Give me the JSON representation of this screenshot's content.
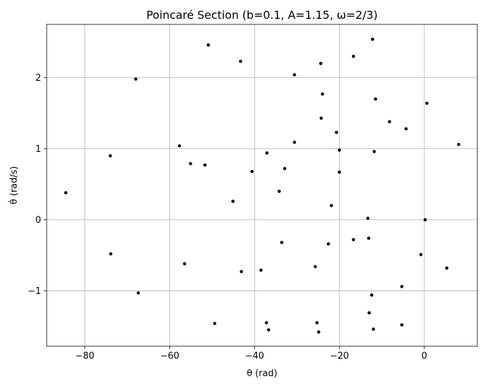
{
  "chart_data": {
    "type": "scatter",
    "title": "Poincaré Section (b=0.1, A=1.15, ω=2/3)",
    "xlabel": "θ (rad)",
    "ylabel": "θ̇ (rad/s)",
    "xlim": [
      -89,
      12.5
    ],
    "ylim": [
      -1.78,
      2.75
    ],
    "xticks": [
      -80,
      -60,
      -40,
      -20,
      0
    ],
    "xtick_labels": [
      "−80",
      "−60",
      "−40",
      "−20",
      "0"
    ],
    "yticks": [
      -1,
      0,
      1,
      2
    ],
    "ytick_labels": [
      "−1",
      "0",
      "1",
      "2"
    ],
    "grid": true,
    "marker_color": "#000000",
    "series": [
      {
        "points": [
          [
            -84.5,
            0.38
          ],
          [
            -74.0,
            0.9
          ],
          [
            -73.9,
            -0.48
          ],
          [
            -68.0,
            1.98
          ],
          [
            -67.4,
            -1.03
          ],
          [
            -57.7,
            1.04
          ],
          [
            -56.5,
            -0.62
          ],
          [
            -55.1,
            0.79
          ],
          [
            -51.7,
            0.77
          ],
          [
            -50.9,
            2.46
          ],
          [
            -49.4,
            -1.46
          ],
          [
            -45.1,
            0.26
          ],
          [
            -43.3,
            2.23
          ],
          [
            -43.1,
            -0.73
          ],
          [
            -40.6,
            0.68
          ],
          [
            -38.5,
            -0.71
          ],
          [
            -37.1,
            0.94
          ],
          [
            -37.2,
            -1.45
          ],
          [
            -36.7,
            -1.55
          ],
          [
            -34.2,
            0.4
          ],
          [
            -33.6,
            -0.32
          ],
          [
            -32.9,
            0.72
          ],
          [
            -30.6,
            2.04
          ],
          [
            -30.6,
            1.09
          ],
          [
            -25.7,
            -0.66
          ],
          [
            -25.3,
            -1.45
          ],
          [
            -24.9,
            -1.58
          ],
          [
            -24.4,
            2.2
          ],
          [
            -24.3,
            1.43
          ],
          [
            -24.0,
            1.77
          ],
          [
            -22.6,
            -0.34
          ],
          [
            -21.9,
            0.2
          ],
          [
            -20.7,
            1.23
          ],
          [
            -20.0,
            0.98
          ],
          [
            -20.0,
            0.67
          ],
          [
            -16.7,
            2.3
          ],
          [
            -16.7,
            -0.28
          ],
          [
            -13.3,
            0.02
          ],
          [
            -13.1,
            -0.26
          ],
          [
            -13.0,
            -1.31
          ],
          [
            -12.4,
            -1.06
          ],
          [
            -12.2,
            2.54
          ],
          [
            -12.0,
            -1.54
          ],
          [
            -11.8,
            0.96
          ],
          [
            -11.5,
            1.7
          ],
          [
            -8.2,
            1.38
          ],
          [
            -5.3,
            -0.94
          ],
          [
            -5.3,
            -1.48
          ],
          [
            -4.3,
            1.28
          ],
          [
            -0.8,
            -0.49
          ],
          [
            0.2,
            0.0
          ],
          [
            0.6,
            1.64
          ],
          [
            5.3,
            -0.68
          ],
          [
            8.1,
            1.06
          ]
        ]
      }
    ]
  }
}
